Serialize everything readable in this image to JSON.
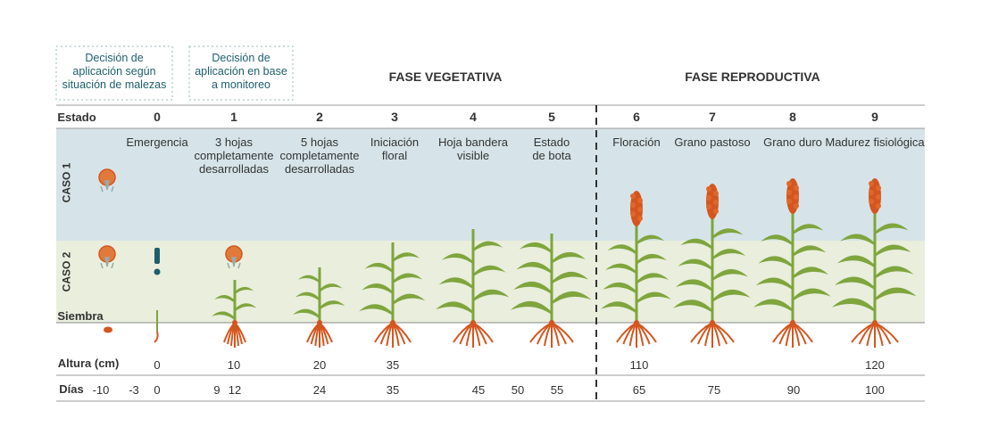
{
  "header": {
    "note_weeds": "Decisión de\naplicación según\nsituación de malezas",
    "note_monitoring": "Decisión de\naplicación en base\na monitoreo",
    "phase_vegetative": "FASE VEGETATIVA",
    "phase_reproductive": "FASE REPRODUCTIVA"
  },
  "stages": {
    "label": "Estado",
    "items": [
      {
        "number": 0,
        "name": "Emergencia"
      },
      {
        "number": 1,
        "name": "3 hojas\ncompletamente\ndesarrolladas"
      },
      {
        "number": 2,
        "name": "5 hojas\ncompletamente\ndesarrolladas"
      },
      {
        "number": 3,
        "name": "Iniciación\nfloral"
      },
      {
        "number": 4,
        "name": "Hoja bandera\nvisible"
      },
      {
        "number": 5,
        "name": "Estado\nde bota"
      },
      {
        "number": 6,
        "name": "Floración"
      },
      {
        "number": 7,
        "name": "Grano pastoso"
      },
      {
        "number": 8,
        "name": "Grano duro"
      },
      {
        "number": 9,
        "name": "Madurez fisiológica"
      }
    ]
  },
  "cases": [
    "CASO 1",
    "CASO 2"
  ],
  "sowing": "Siembra",
  "height": {
    "label": "Altura (cm)",
    "values": [
      0,
      10,
      20,
      35,
      110,
      120
    ]
  },
  "days": {
    "label": "Días",
    "values": [
      -10,
      -3,
      0,
      9,
      12,
      24,
      35,
      45,
      50,
      55,
      65,
      75,
      90,
      100
    ]
  }
}
